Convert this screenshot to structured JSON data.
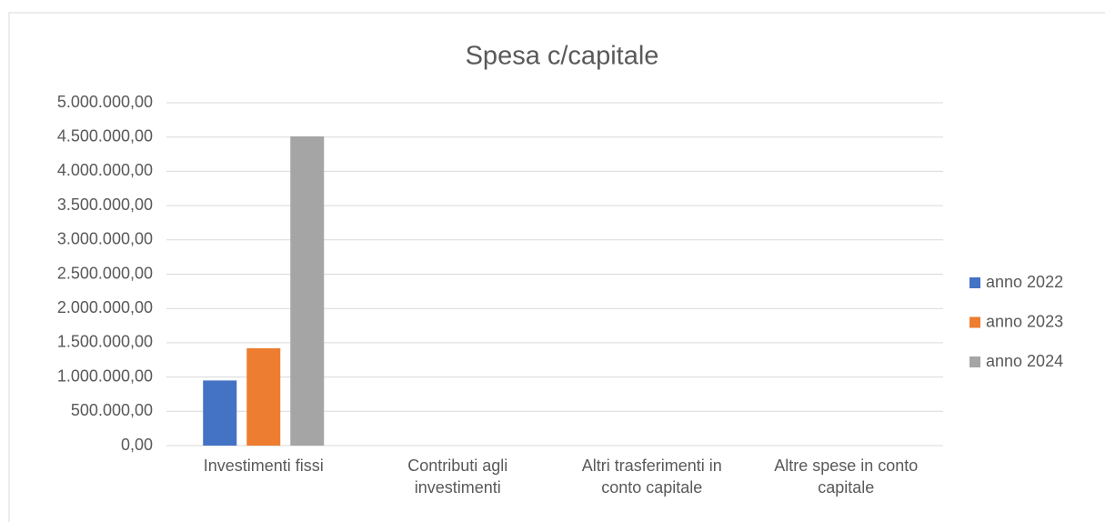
{
  "chart_data": {
    "type": "bar",
    "title": "Spesa c/capitale",
    "categories": [
      "Investimenti fissi",
      "Contributi agli investimenti",
      "Altri trasferimenti in conto capitale",
      "Altre spese in conto capitale"
    ],
    "series": [
      {
        "name": "anno 2022",
        "color": "#4472c4",
        "values": [
          950000,
          0,
          0,
          0
        ]
      },
      {
        "name": "anno 2023",
        "color": "#ed7d31",
        "values": [
          1420000,
          0,
          0,
          0
        ]
      },
      {
        "name": "anno 2024",
        "color": "#a5a5a5",
        "values": [
          4510000,
          0,
          0,
          0
        ]
      }
    ],
    "ylim": [
      0,
      5000000
    ],
    "yticks": [
      {
        "value": 0,
        "label": "0,00"
      },
      {
        "value": 500000,
        "label": "500.000,00"
      },
      {
        "value": 1000000,
        "label": "1.000.000,00"
      },
      {
        "value": 1500000,
        "label": "1.500.000,00"
      },
      {
        "value": 2000000,
        "label": "2.000.000,00"
      },
      {
        "value": 2500000,
        "label": "2.500.000,00"
      },
      {
        "value": 3000000,
        "label": "3.000.000,00"
      },
      {
        "value": 3500000,
        "label": "3.500.000,00"
      },
      {
        "value": 4000000,
        "label": "4.000.000,00"
      },
      {
        "value": 4500000,
        "label": "4.500.000,00"
      },
      {
        "value": 5000000,
        "label": "5.000.000,00"
      }
    ],
    "grid": true,
    "legend": "right"
  }
}
